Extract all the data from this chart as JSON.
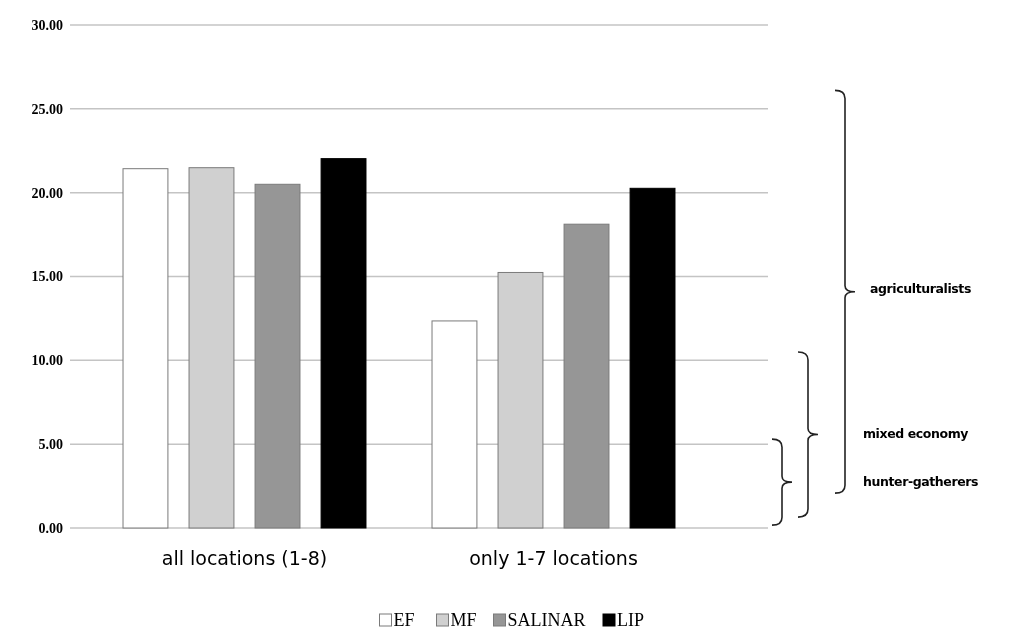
{
  "chart_data": {
    "type": "bar",
    "categories": [
      "all locations (1-8)",
      "only 1-7 locations"
    ],
    "series": [
      {
        "name": "EF",
        "color": "#ffffff",
        "values": [
          21.43,
          12.35
        ]
      },
      {
        "name": "MF",
        "color": "#d0d0d0",
        "values": [
          21.49,
          15.24
        ]
      },
      {
        "name": "SALINAR",
        "color": "#969696",
        "values": [
          20.5,
          18.12
        ]
      },
      {
        "name": "LIP",
        "color": "#000000",
        "values": [
          22.03,
          20.26
        ]
      }
    ],
    "ylim": [
      0,
      30
    ],
    "yticks": [
      {
        "value": 0,
        "label": "0.00"
      },
      {
        "value": 5,
        "label": "5.00"
      },
      {
        "value": 10,
        "label": "10.00"
      },
      {
        "value": 15,
        "label": "15.00"
      },
      {
        "value": 20,
        "label": "20.00"
      },
      {
        "value": 25,
        "label": "25.00"
      },
      {
        "value": 30,
        "label": "30.00"
      }
    ],
    "grid": "y",
    "legend": "bottom",
    "annotations": [
      "agriculturalists",
      "mixed economy",
      "hunter-gatherers"
    ]
  }
}
